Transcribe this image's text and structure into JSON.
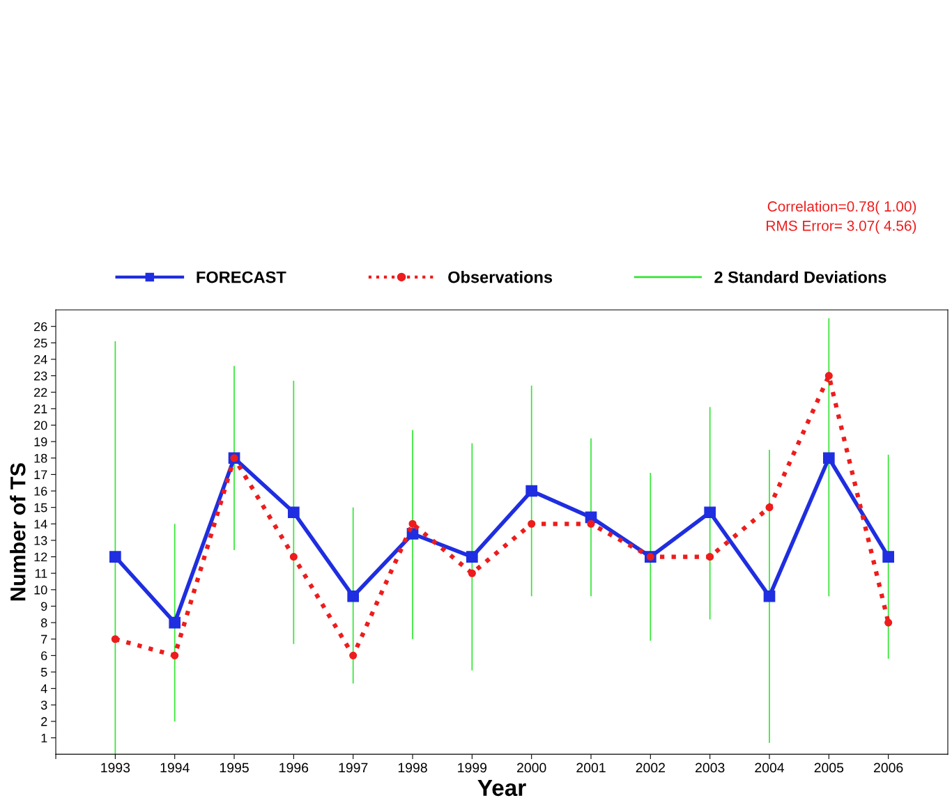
{
  "chart_data": {
    "type": "line",
    "xlabel": "Year",
    "ylabel": "Number of TS",
    "x": [
      1993,
      1994,
      1995,
      1996,
      1997,
      1998,
      1999,
      2000,
      2001,
      2002,
      2003,
      2004,
      2005,
      2006
    ],
    "series": [
      {
        "name": "FORECAST",
        "color": "#1f2ee0",
        "marker": "square",
        "line_style": "solid",
        "values": [
          12,
          8,
          18,
          14.7,
          9.6,
          13.4,
          12,
          16,
          14.4,
          12,
          14.7,
          9.6,
          18,
          12
        ]
      },
      {
        "name": "Observations",
        "color": "#ee1c1c",
        "marker": "circle",
        "line_style": "dotted",
        "values": [
          7,
          6,
          18,
          12,
          6,
          14,
          11,
          14,
          14,
          12,
          12,
          15,
          23,
          8
        ]
      },
      {
        "name": "2 Standard Deviations",
        "color": "#33e633",
        "type": "bar",
        "base": [
          0,
          2.0,
          12.4,
          6.7,
          4.3,
          7.0,
          5.1,
          9.6,
          9.6,
          6.9,
          8.2,
          0.7,
          9.6,
          5.8
        ],
        "values": [
          25.1,
          12.0,
          11.2,
          16.0,
          10.7,
          12.7,
          13.8,
          12.8,
          9.6,
          10.2,
          12.9,
          17.8,
          16.9,
          12.4
        ]
      }
    ],
    "xlim": [
      1992,
      2007
    ],
    "xticks": [
      {
        "value": 1992,
        "label": null
      },
      1993,
      1994,
      1995,
      1996,
      1997,
      1998,
      1999,
      2000,
      2001,
      2002,
      2003,
      2004,
      2005,
      2006
    ],
    "ylim": [
      0,
      27
    ],
    "yticks": [
      1,
      2,
      3,
      4,
      5,
      6,
      7,
      8,
      9,
      10,
      11,
      12,
      13,
      14,
      15,
      16,
      17,
      18,
      19,
      20,
      21,
      22,
      23,
      24,
      25,
      26
    ],
    "annotations": [
      "Correlation=0.78( 1.00)",
      "RMS Error= 3.07( 4.56)"
    ],
    "legend": "top",
    "grid": false
  }
}
